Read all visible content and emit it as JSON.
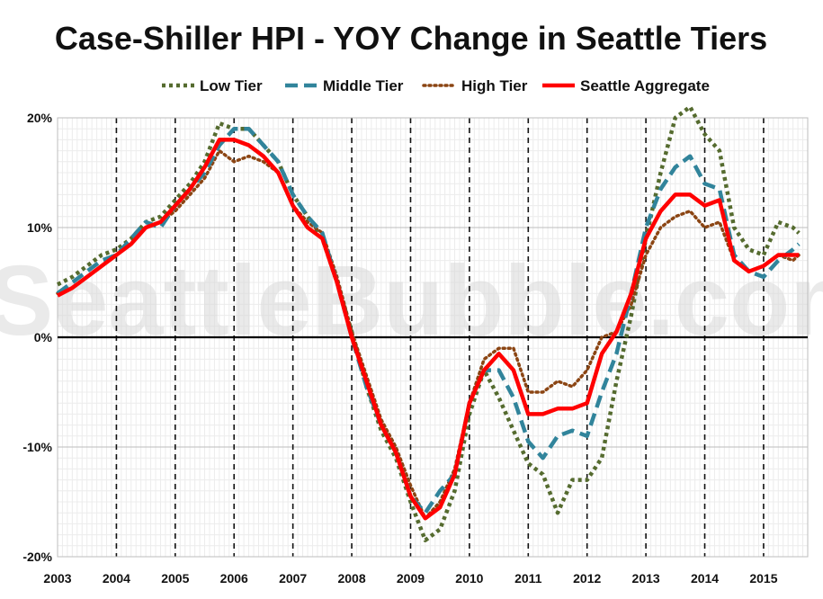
{
  "chart_data": {
    "type": "line",
    "title": "Case-Shiller HPI - YOY Change in Seattle Tiers",
    "xlabel": "",
    "ylabel": "",
    "watermark": "SeattleBubble.com",
    "xlim": [
      2003.0,
      2015.75
    ],
    "ylim": [
      -20,
      20
    ],
    "x_ticks": [
      "2003",
      "2004",
      "2005",
      "2006",
      "2007",
      "2008",
      "2009",
      "2010",
      "2011",
      "2012",
      "2013",
      "2014",
      "2015"
    ],
    "y_ticks": [
      "20%",
      "10%",
      "0%",
      "-10%",
      "-20%"
    ],
    "y_tick_values": [
      20,
      10,
      0,
      -10,
      -20
    ],
    "legend_position": "top",
    "grid": true,
    "series": [
      {
        "name": "Low Tier",
        "color": "#556b2f",
        "style": "dotted",
        "x": [
          2003.0,
          2003.25,
          2003.5,
          2003.75,
          2004.0,
          2004.25,
          2004.5,
          2004.75,
          2005.0,
          2005.25,
          2005.5,
          2005.75,
          2006.0,
          2006.25,
          2006.5,
          2006.75,
          2007.0,
          2007.25,
          2007.5,
          2007.75,
          2008.0,
          2008.25,
          2008.5,
          2008.75,
          2009.0,
          2009.25,
          2009.5,
          2009.75,
          2010.0,
          2010.25,
          2010.5,
          2010.75,
          2011.0,
          2011.25,
          2011.5,
          2011.75,
          2012.0,
          2012.25,
          2012.5,
          2012.75,
          2013.0,
          2013.25,
          2013.5,
          2013.75,
          2014.0,
          2014.25,
          2014.5,
          2014.75,
          2015.0,
          2015.25,
          2015.5,
          2015.6
        ],
        "y": [
          4.8,
          5.5,
          6.5,
          7.5,
          8.0,
          9.0,
          10.5,
          11.0,
          12.5,
          14.0,
          16.0,
          19.5,
          19.0,
          19.0,
          17.5,
          16.0,
          13.0,
          11.0,
          9.0,
          5.0,
          0.5,
          -4.5,
          -8.5,
          -11.0,
          -15.0,
          -18.5,
          -17.5,
          -14.0,
          -7.0,
          -3.0,
          -5.5,
          -8.5,
          -11.5,
          -12.5,
          -16.0,
          -13.0,
          -13.0,
          -11.0,
          -4.0,
          2.0,
          9.0,
          15.0,
          20.0,
          21.0,
          18.5,
          17.0,
          10.0,
          8.0,
          7.5,
          10.5,
          10.0,
          9.5
        ]
      },
      {
        "name": "Middle Tier",
        "color": "#31849b",
        "style": "dashed",
        "x": [
          2003.0,
          2003.25,
          2003.5,
          2003.75,
          2004.0,
          2004.25,
          2004.5,
          2004.75,
          2005.0,
          2005.25,
          2005.5,
          2005.75,
          2006.0,
          2006.25,
          2006.5,
          2006.75,
          2007.0,
          2007.25,
          2007.5,
          2007.75,
          2008.0,
          2008.25,
          2008.5,
          2008.75,
          2009.0,
          2009.25,
          2009.5,
          2009.75,
          2010.0,
          2010.25,
          2010.5,
          2010.75,
          2011.0,
          2011.25,
          2011.5,
          2011.75,
          2012.0,
          2012.25,
          2012.5,
          2012.75,
          2013.0,
          2013.25,
          2013.5,
          2013.75,
          2014.0,
          2014.25,
          2014.5,
          2014.75,
          2015.0,
          2015.25,
          2015.5,
          2015.6
        ],
        "y": [
          4.0,
          5.0,
          6.0,
          7.0,
          7.5,
          9.0,
          10.5,
          10.0,
          12.0,
          13.5,
          15.0,
          17.5,
          19.0,
          19.0,
          17.5,
          16.0,
          13.0,
          11.0,
          9.5,
          5.0,
          0.0,
          -4.5,
          -8.0,
          -10.5,
          -14.5,
          -16.0,
          -14.0,
          -12.5,
          -6.0,
          -3.0,
          -3.0,
          -5.5,
          -9.5,
          -11.0,
          -9.0,
          -8.5,
          -9.0,
          -5.0,
          -1.5,
          4.0,
          10.0,
          13.5,
          15.5,
          16.5,
          14.0,
          13.5,
          7.5,
          6.0,
          5.5,
          7.0,
          8.0,
          8.5
        ]
      },
      {
        "name": "High Tier",
        "color": "#8b4513",
        "style": "dotted",
        "x": [
          2003.0,
          2003.25,
          2003.5,
          2003.75,
          2004.0,
          2004.25,
          2004.5,
          2004.75,
          2005.0,
          2005.25,
          2005.5,
          2005.75,
          2006.0,
          2006.25,
          2006.5,
          2006.75,
          2007.0,
          2007.25,
          2007.5,
          2007.75,
          2008.0,
          2008.25,
          2008.5,
          2008.75,
          2009.0,
          2009.25,
          2009.5,
          2009.75,
          2010.0,
          2010.25,
          2010.5,
          2010.75,
          2011.0,
          2011.25,
          2011.5,
          2011.75,
          2012.0,
          2012.25,
          2012.5,
          2012.75,
          2013.0,
          2013.25,
          2013.5,
          2013.75,
          2014.0,
          2014.25,
          2014.5,
          2014.75,
          2015.0,
          2015.25,
          2015.5,
          2015.6
        ],
        "y": [
          4.0,
          4.5,
          5.5,
          6.5,
          7.5,
          8.5,
          10.0,
          10.5,
          11.5,
          13.0,
          14.5,
          17.0,
          16.0,
          16.5,
          16.0,
          15.0,
          12.0,
          10.5,
          9.5,
          5.5,
          0.5,
          -3.5,
          -7.5,
          -10.0,
          -13.5,
          -16.5,
          -15.0,
          -12.0,
          -6.0,
          -2.0,
          -1.0,
          -1.0,
          -5.0,
          -5.0,
          -4.0,
          -4.5,
          -3.0,
          0.0,
          0.5,
          3.0,
          7.5,
          10.0,
          11.0,
          11.5,
          10.0,
          10.5,
          7.0,
          6.0,
          6.5,
          7.5,
          7.0,
          7.5
        ]
      },
      {
        "name": "Seattle Aggregate",
        "color": "#ff0000",
        "style": "solid",
        "x": [
          2003.0,
          2003.25,
          2003.5,
          2003.75,
          2004.0,
          2004.25,
          2004.5,
          2004.75,
          2005.0,
          2005.25,
          2005.5,
          2005.75,
          2006.0,
          2006.25,
          2006.5,
          2006.75,
          2007.0,
          2007.25,
          2007.5,
          2007.75,
          2008.0,
          2008.25,
          2008.5,
          2008.75,
          2009.0,
          2009.25,
          2009.5,
          2009.75,
          2010.0,
          2010.25,
          2010.5,
          2010.75,
          2011.0,
          2011.25,
          2011.5,
          2011.75,
          2012.0,
          2012.25,
          2012.5,
          2012.75,
          2013.0,
          2013.25,
          2013.5,
          2013.75,
          2014.0,
          2014.25,
          2014.5,
          2014.75,
          2015.0,
          2015.25,
          2015.5,
          2015.6
        ],
        "y": [
          3.8,
          4.5,
          5.5,
          6.5,
          7.5,
          8.5,
          10.0,
          10.5,
          12.0,
          13.5,
          15.5,
          18.0,
          18.0,
          17.5,
          16.5,
          15.0,
          12.0,
          10.0,
          9.0,
          5.0,
          0.0,
          -4.0,
          -8.0,
          -10.5,
          -14.5,
          -16.5,
          -15.5,
          -12.5,
          -6.0,
          -3.0,
          -1.5,
          -3.0,
          -7.0,
          -7.0,
          -6.5,
          -6.5,
          -6.0,
          -1.5,
          0.5,
          4.0,
          9.0,
          11.5,
          13.0,
          13.0,
          12.0,
          12.5,
          7.0,
          6.0,
          6.5,
          7.5,
          7.5,
          7.5
        ]
      }
    ]
  }
}
